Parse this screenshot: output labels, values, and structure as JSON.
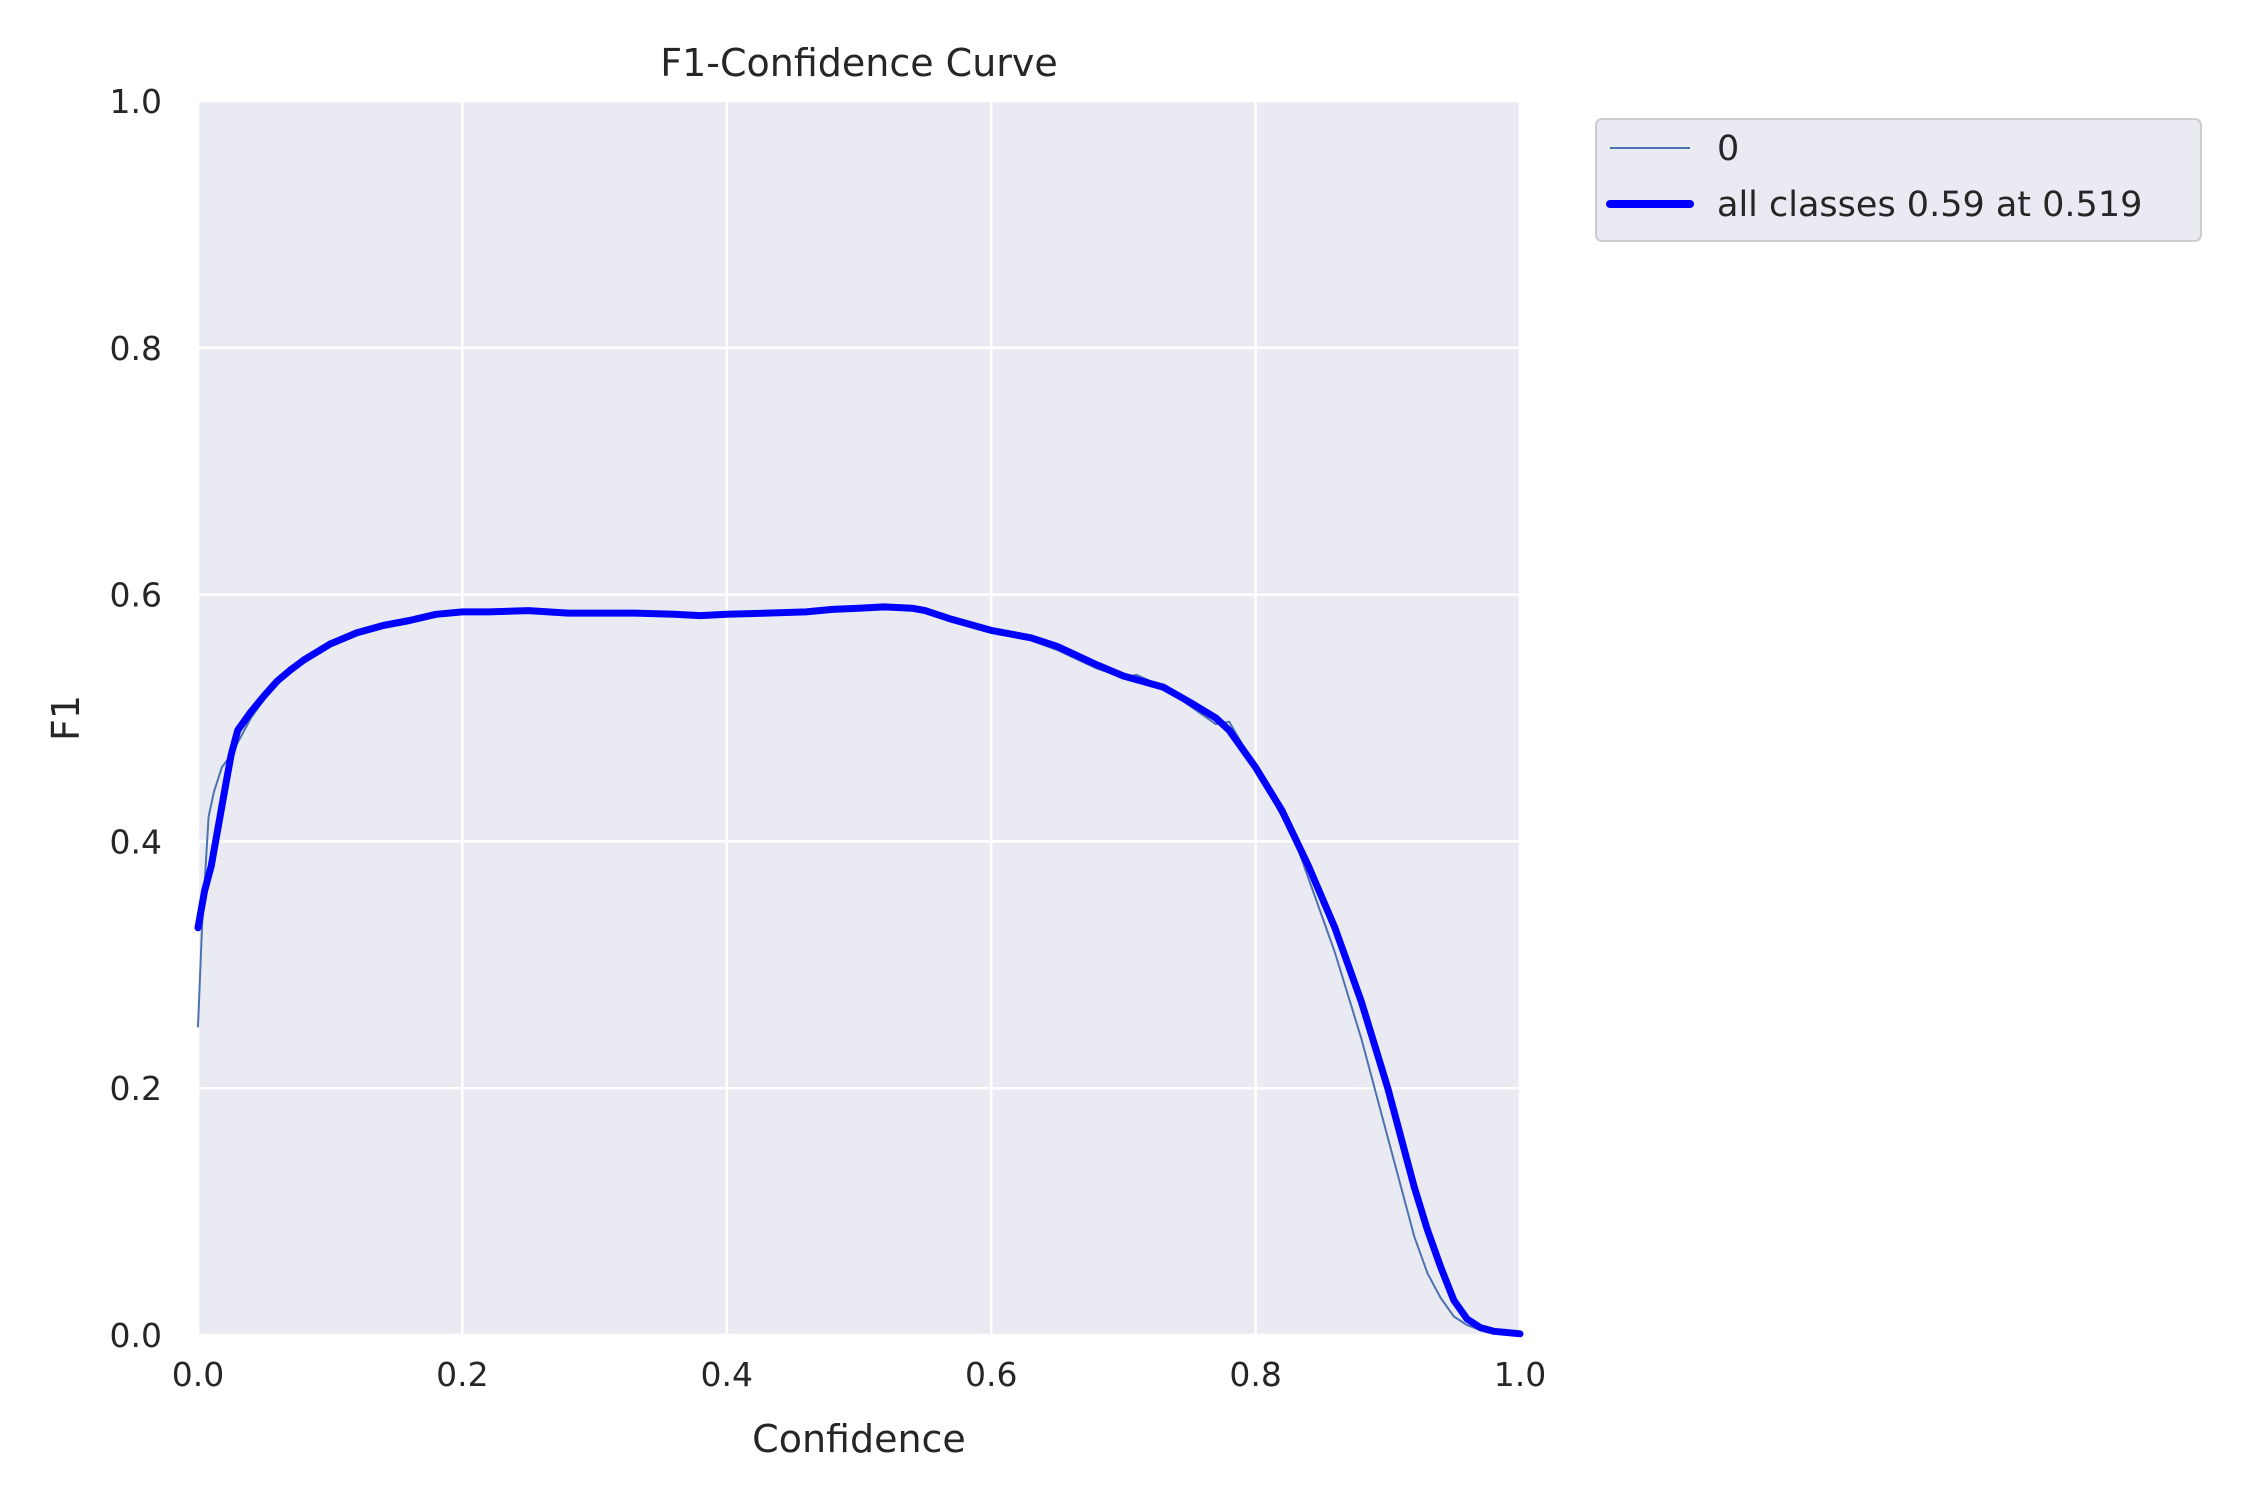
{
  "chart_data": {
    "type": "line",
    "title": "F1-Confidence Curve",
    "xlabel": "Confidence",
    "ylabel": "F1",
    "xlim": [
      0.0,
      1.0
    ],
    "ylim": [
      0.0,
      1.0
    ],
    "xticks": [
      "0.0",
      "0.2",
      "0.4",
      "0.6",
      "0.8",
      "1.0"
    ],
    "yticks": [
      "0.0",
      "0.2",
      "0.4",
      "0.6",
      "0.8",
      "1.0"
    ],
    "grid": true,
    "legend_position": "outside-top-right",
    "series": [
      {
        "name": "0",
        "color": "#4c72b0",
        "x": [
          0.0,
          0.003,
          0.008,
          0.012,
          0.018,
          0.025,
          0.03,
          0.04,
          0.05,
          0.06,
          0.07,
          0.08,
          0.1,
          0.12,
          0.14,
          0.16,
          0.18,
          0.2,
          0.22,
          0.25,
          0.28,
          0.3,
          0.33,
          0.36,
          0.38,
          0.4,
          0.43,
          0.46,
          0.48,
          0.5,
          0.52,
          0.54,
          0.55,
          0.57,
          0.6,
          0.63,
          0.65,
          0.68,
          0.7,
          0.71,
          0.73,
          0.75,
          0.77,
          0.78,
          0.8,
          0.82,
          0.83,
          0.84,
          0.86,
          0.88,
          0.9,
          0.92,
          0.93,
          0.94,
          0.95,
          0.96,
          0.97,
          0.98,
          0.99,
          1.0
        ],
        "y": [
          0.25,
          0.33,
          0.42,
          0.44,
          0.46,
          0.47,
          0.48,
          0.5,
          0.515,
          0.528,
          0.538,
          0.547,
          0.56,
          0.57,
          0.576,
          0.58,
          0.585,
          0.587,
          0.586,
          0.587,
          0.585,
          0.585,
          0.585,
          0.584,
          0.583,
          0.584,
          0.585,
          0.586,
          0.588,
          0.589,
          0.59,
          0.589,
          0.587,
          0.58,
          0.57,
          0.563,
          0.555,
          0.54,
          0.533,
          0.535,
          0.525,
          0.51,
          0.495,
          0.497,
          0.46,
          0.42,
          0.4,
          0.37,
          0.31,
          0.24,
          0.16,
          0.08,
          0.05,
          0.03,
          0.015,
          0.008,
          0.004,
          0.002,
          0.001,
          0.0
        ]
      },
      {
        "name": "all classes 0.59 at 0.519",
        "color": "#0000ff",
        "x": [
          0.0,
          0.005,
          0.01,
          0.015,
          0.02,
          0.025,
          0.03,
          0.04,
          0.05,
          0.06,
          0.07,
          0.08,
          0.1,
          0.12,
          0.14,
          0.16,
          0.18,
          0.2,
          0.22,
          0.25,
          0.28,
          0.3,
          0.33,
          0.36,
          0.38,
          0.4,
          0.43,
          0.46,
          0.48,
          0.5,
          0.519,
          0.54,
          0.55,
          0.57,
          0.6,
          0.63,
          0.65,
          0.68,
          0.7,
          0.73,
          0.75,
          0.77,
          0.78,
          0.8,
          0.82,
          0.84,
          0.86,
          0.88,
          0.9,
          0.92,
          0.93,
          0.94,
          0.95,
          0.96,
          0.97,
          0.98,
          0.99,
          1.0
        ],
        "y": [
          0.33,
          0.36,
          0.38,
          0.41,
          0.44,
          0.47,
          0.49,
          0.505,
          0.518,
          0.53,
          0.539,
          0.547,
          0.56,
          0.569,
          0.575,
          0.579,
          0.584,
          0.586,
          0.586,
          0.587,
          0.585,
          0.585,
          0.585,
          0.584,
          0.583,
          0.584,
          0.585,
          0.586,
          0.588,
          0.589,
          0.59,
          0.589,
          0.587,
          0.58,
          0.571,
          0.565,
          0.558,
          0.543,
          0.534,
          0.525,
          0.513,
          0.5,
          0.49,
          0.46,
          0.425,
          0.38,
          0.33,
          0.27,
          0.2,
          0.12,
          0.085,
          0.055,
          0.028,
          0.013,
          0.006,
          0.003,
          0.002,
          0.001
        ]
      }
    ]
  }
}
